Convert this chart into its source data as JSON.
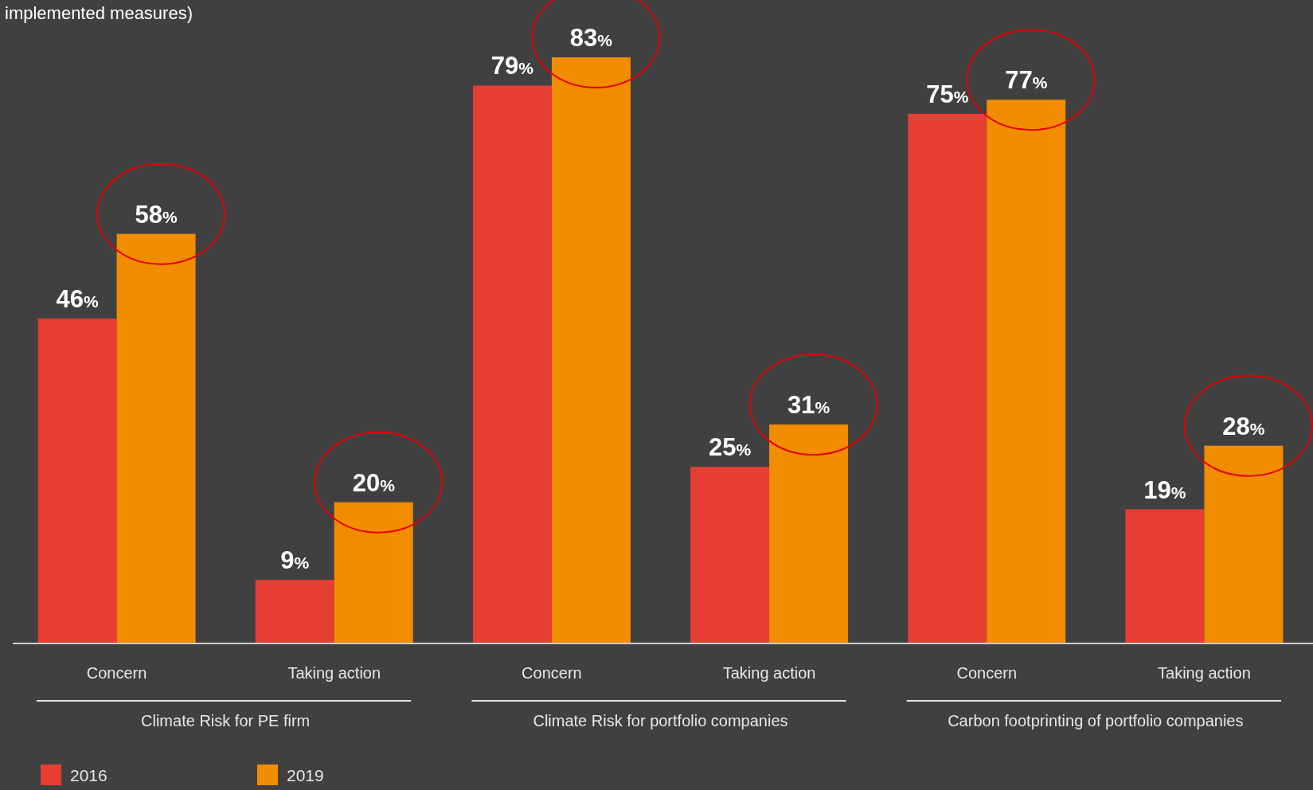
{
  "chart_data": {
    "type": "bar",
    "title": "implemented measures)",
    "categories": [
      "Concern",
      "Taking action",
      "Concern",
      "Taking action",
      "Concern",
      "Taking action"
    ],
    "series": [
      {
        "name": "2016",
        "color": "#e63e33",
        "values": [
          46,
          9,
          79,
          25,
          75,
          19
        ],
        "value_labels": [
          "46%",
          "9%",
          "79%",
          "25%",
          "75%",
          "19%"
        ]
      },
      {
        "name": "2019",
        "color": "#f28c00",
        "values": [
          58,
          20,
          83,
          31,
          77,
          28
        ],
        "value_labels": [
          "58%",
          "20%",
          "83%",
          "31%",
          "77%",
          "28%"
        ]
      }
    ],
    "annotations": [
      "Climate Risk for PE firm",
      "Climate Risk for portfolio companies",
      "Carbon footprinting of portfolio companies"
    ],
    "legend": "bottom left"
  }
}
